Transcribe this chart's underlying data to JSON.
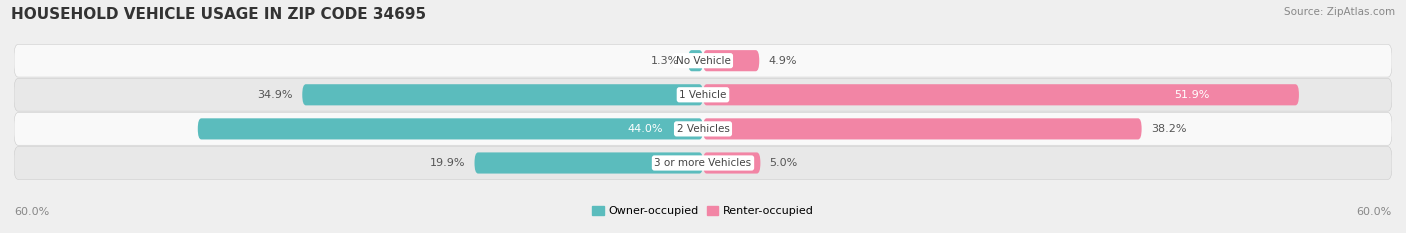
{
  "title": "HOUSEHOLD VEHICLE USAGE IN ZIP CODE 34695",
  "source": "Source: ZipAtlas.com",
  "categories": [
    "No Vehicle",
    "1 Vehicle",
    "2 Vehicles",
    "3 or more Vehicles"
  ],
  "owner_values": [
    1.3,
    34.9,
    44.0,
    19.9
  ],
  "renter_values": [
    4.9,
    51.9,
    38.2,
    5.0
  ],
  "owner_color": "#5bbcbd",
  "renter_color": "#f285a5",
  "axis_max": 60.0,
  "bar_height": 0.62,
  "bg_color": "#efefef",
  "row_bg_light": "#f9f9f9",
  "row_bg_dark": "#e8e8e8",
  "legend_owner": "Owner-occupied",
  "legend_renter": "Renter-occupied",
  "axis_label_left": "60.0%",
  "axis_label_right": "60.0%",
  "owner_label_white": [
    false,
    false,
    true,
    false
  ],
  "renter_label_white": [
    false,
    true,
    false,
    false
  ],
  "title_fontsize": 11,
  "source_fontsize": 7.5,
  "label_fontsize": 8,
  "cat_fontsize": 7.5
}
